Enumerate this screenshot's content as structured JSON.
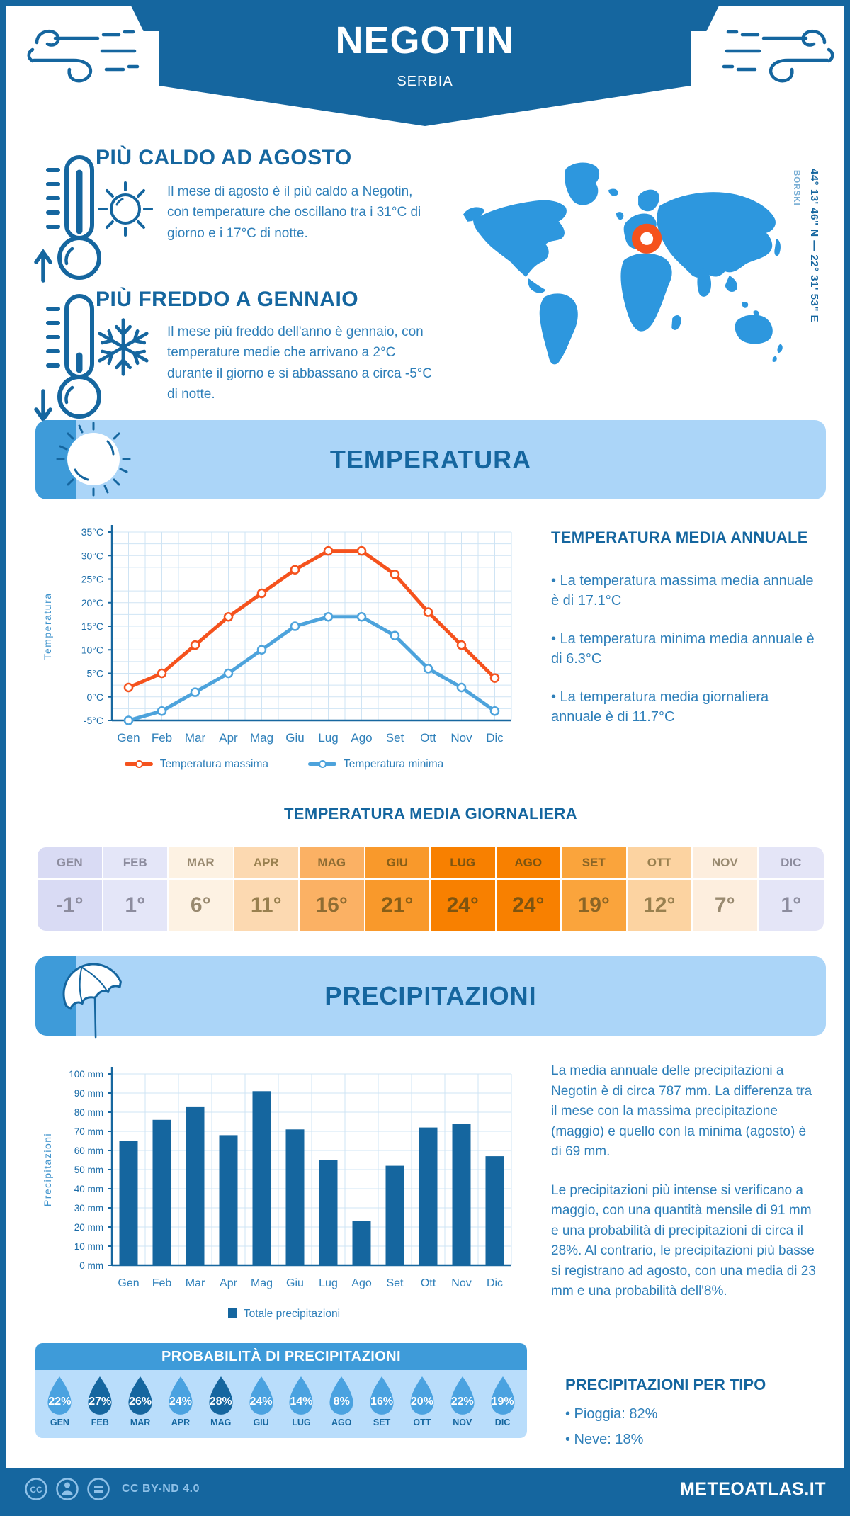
{
  "header": {
    "title": "NEGOTIN",
    "subtitle": "SERBIA"
  },
  "highlights": [
    {
      "title": "PIÙ CALDO AD AGOSTO",
      "text": "Il mese di agosto è il più caldo a Negotin, con temperature che oscillano tra i 31°C di giorno e i 17°C di notte."
    },
    {
      "title": "PIÙ FREDDO A GENNAIO",
      "text": "Il mese più freddo dell'anno è gennaio, con temperature medie che arrivano a 2°C durante il giorno e si abbassano a circa -5°C di notte."
    }
  ],
  "map": {
    "coordinates": "44° 13' 46\" N — 22° 31' 53\" E",
    "region": "BORSKI"
  },
  "temperature_section": {
    "banner": "TEMPERATURA",
    "annual_heading": "TEMPERATURA MEDIA ANNUALE",
    "annual_bullets": [
      "• La temperatura massima media annuale è di 17.1°C",
      "• La temperatura minima media annuale è di 6.3°C",
      "• La temperatura media giornaliera annuale è di 11.7°C"
    ],
    "daily_heading": "TEMPERATURA MEDIA GIORNALIERA",
    "daily_table": {
      "months": [
        "GEN",
        "FEB",
        "MAR",
        "APR",
        "MAG",
        "GIU",
        "LUG",
        "AGO",
        "SET",
        "OTT",
        "NOV",
        "DIC"
      ],
      "values": [
        "-1°",
        "1°",
        "6°",
        "11°",
        "16°",
        "21°",
        "24°",
        "24°",
        "19°",
        "12°",
        "7°",
        "1°"
      ],
      "cell_bg": [
        "#d9dbf4",
        "#e4e6f8",
        "#fdf2e3",
        "#fcd9b1",
        "#fbb164",
        "#f9992b",
        "#f88000",
        "#f88000",
        "#faa43c",
        "#fcd3a1",
        "#fdeede",
        "#e4e5f7"
      ],
      "cell_fg": [
        "#8c8c9e",
        "#8c8c9e",
        "#998a70",
        "#99804f",
        "#8e6c33",
        "#875e17",
        "#7d5410",
        "#7d5410",
        "#8a6526",
        "#99804f",
        "#998a70",
        "#8c8c9e"
      ]
    }
  },
  "precipitation_section": {
    "banner": "PRECIPITAZIONI",
    "paragraphs": [
      "La media annuale delle precipitazioni a Negotin è di circa 787 mm. La differenza tra il mese con la massima precipitazione (maggio) e quello con la minima (agosto) è di 69 mm.",
      "Le precipitazioni più intense si verificano a maggio, con una quantità mensile di 91 mm e una probabilità di precipitazioni di circa il 28%. Al contrario, le precipitazioni più basse si registrano ad agosto, con una media di 23 mm e una probabilità dell'8%."
    ],
    "probability": {
      "heading": "PROBABILITÀ DI PRECIPITAZIONI",
      "months": [
        "GEN",
        "FEB",
        "MAR",
        "APR",
        "MAG",
        "GIU",
        "LUG",
        "AGO",
        "SET",
        "OTT",
        "NOV",
        "DIC"
      ],
      "values": [
        "22%",
        "27%",
        "26%",
        "24%",
        "28%",
        "24%",
        "14%",
        "8%",
        "16%",
        "20%",
        "22%",
        "19%"
      ],
      "dark": [
        false,
        true,
        true,
        false,
        true,
        false,
        false,
        false,
        false,
        false,
        false,
        false
      ],
      "drop_color": "#4aa2e0",
      "drop_color_dark": "#15669f"
    },
    "per_tipo": {
      "heading": "PRECIPITAZIONI PER TIPO",
      "bullets": [
        "• Pioggia: 82%",
        "• Neve: 18%"
      ]
    }
  },
  "chart_data": [
    {
      "type": "line",
      "title": "",
      "categories": [
        "Gen",
        "Feb",
        "Mar",
        "Apr",
        "Mag",
        "Giu",
        "Lug",
        "Ago",
        "Set",
        "Ott",
        "Nov",
        "Dic"
      ],
      "series": [
        {
          "name": "Temperatura massima",
          "color": "#f5521d",
          "values": [
            2,
            5,
            11,
            17,
            22,
            27,
            31,
            31,
            26,
            18,
            11,
            4
          ]
        },
        {
          "name": "Temperatura minima",
          "color": "#4da3dc",
          "values": [
            -5,
            -3,
            1,
            5,
            10,
            15,
            17,
            17,
            13,
            6,
            2,
            -3
          ]
        }
      ],
      "ylabel": "Temperatura",
      "ylim": [
        -5,
        35
      ],
      "ytick_step": 5,
      "ytick_suffix": "°C",
      "grid": true,
      "legend_position": "bottom"
    },
    {
      "type": "bar",
      "title": "",
      "categories": [
        "Gen",
        "Feb",
        "Mar",
        "Apr",
        "Mag",
        "Giu",
        "Lug",
        "Ago",
        "Set",
        "Ott",
        "Nov",
        "Dic"
      ],
      "values": [
        65,
        76,
        83,
        68,
        91,
        71,
        55,
        23,
        52,
        72,
        74,
        57
      ],
      "series_name": "Totale precipitazioni",
      "bar_color": "#15669f",
      "ylabel": "Precipitazioni",
      "ylim": [
        0,
        100
      ],
      "ytick_step": 10,
      "ytick_suffix": " mm",
      "grid": true,
      "legend_position": "bottom"
    }
  ],
  "footer": {
    "license": "CC BY-ND 4.0",
    "site": "METEOATLAS.IT"
  },
  "colors": {
    "dark_blue": "#15669f",
    "mid_blue": "#2e7fb9",
    "banner_bg": "#abd5f8",
    "banner_square": "#3e9bd9",
    "map_blue": "#2d97de",
    "marker_orange": "#f5521d"
  }
}
